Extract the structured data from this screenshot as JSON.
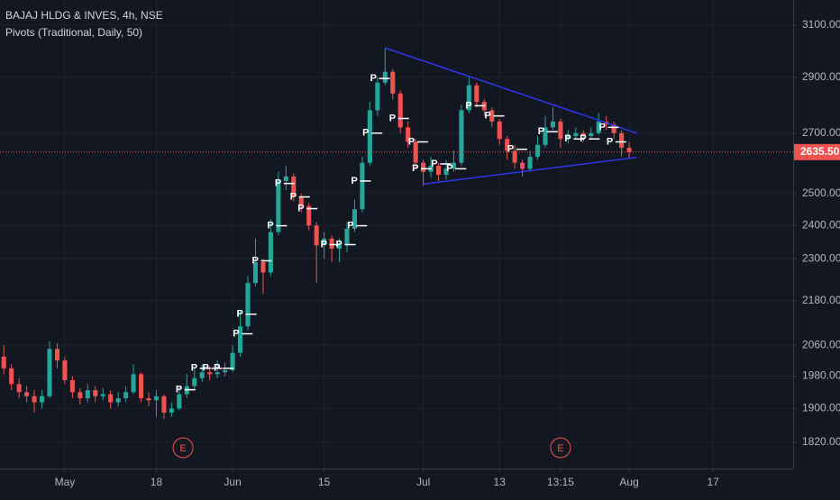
{
  "chart_data": {
    "type": "candlestick",
    "title": "BAJAJ HLDG & INVES, 4h, NSE",
    "subtitle": "Pivots (Traditional, Daily, 50)",
    "log_scale": true,
    "grid": true,
    "up_color": "#26a69a",
    "down_color": "#ef5350",
    "open": [
      2030,
      2000,
      1960,
      1940,
      1930,
      1915,
      1930,
      2050,
      2020,
      1970,
      1940,
      1925,
      1945,
      1930,
      1935,
      1915,
      1925,
      1940,
      1985,
      1925,
      1920,
      1930,
      1890,
      1900,
      1935,
      1955,
      1975,
      1990,
      1985,
      1990,
      1995,
      2040,
      2110,
      2230,
      2290,
      2260,
      2380,
      2540,
      2555,
      2490,
      2460,
      2400,
      2340,
      2360,
      2330,
      2340,
      2390,
      2450,
      2600,
      2780,
      2880,
      2920,
      2840,
      2720,
      2670,
      2600,
      2570,
      2590,
      2560,
      2580,
      2600,
      2780,
      2870,
      2810,
      2780,
      2740,
      2680,
      2640,
      2600,
      2580,
      2620,
      2660,
      2720,
      2740,
      2680,
      2690,
      2700,
      2690,
      2700,
      2740,
      2730,
      2700,
      2650
    ],
    "high": [
      2060,
      2010,
      1975,
      1955,
      1945,
      1945,
      2070,
      2065,
      2030,
      1980,
      1950,
      1960,
      1955,
      1950,
      1945,
      1940,
      1955,
      2010,
      1990,
      1940,
      1945,
      1935,
      1915,
      1955,
      1985,
      2000,
      2010,
      2005,
      2020,
      2015,
      2060,
      2150,
      2250,
      2360,
      2300,
      2420,
      2570,
      2590,
      2565,
      2500,
      2470,
      2410,
      2380,
      2370,
      2360,
      2410,
      2480,
      2620,
      2810,
      2900,
      3010,
      2930,
      2850,
      2740,
      2680,
      2610,
      2620,
      2600,
      2610,
      2640,
      2800,
      2900,
      2880,
      2820,
      2790,
      2750,
      2690,
      2660,
      2610,
      2640,
      2690,
      2760,
      2790,
      2750,
      2710,
      2720,
      2710,
      2720,
      2770,
      2760,
      2740,
      2710,
      2670
    ],
    "low": [
      1985,
      1945,
      1925,
      1915,
      1890,
      1900,
      1925,
      2000,
      1960,
      1925,
      1910,
      1915,
      1915,
      1920,
      1900,
      1905,
      1915,
      1935,
      1915,
      1905,
      1880,
      1875,
      1880,
      1895,
      1925,
      1945,
      1965,
      1970,
      1975,
      1980,
      1990,
      2030,
      2100,
      2220,
      2200,
      2250,
      2370,
      2510,
      2475,
      2440,
      2385,
      2230,
      2300,
      2290,
      2290,
      2320,
      2380,
      2440,
      2590,
      2760,
      2870,
      2820,
      2700,
      2650,
      2580,
      2525,
      2550,
      2540,
      2545,
      2570,
      2590,
      2770,
      2790,
      2760,
      2720,
      2660,
      2610,
      2580,
      2555,
      2570,
      2610,
      2650,
      2710,
      2650,
      2665,
      2680,
      2670,
      2680,
      2695,
      2710,
      2680,
      2620,
      2615
    ],
    "close": [
      2000,
      1960,
      1940,
      1930,
      1915,
      1930,
      2050,
      2020,
      1970,
      1940,
      1925,
      1945,
      1930,
      1935,
      1915,
      1925,
      1940,
      1985,
      1925,
      1920,
      1930,
      1890,
      1900,
      1935,
      1955,
      1975,
      1990,
      1985,
      1990,
      1995,
      2040,
      2110,
      2230,
      2290,
      2260,
      2380,
      2540,
      2555,
      2490,
      2460,
      2400,
      2340,
      2360,
      2330,
      2340,
      2390,
      2450,
      2600,
      2780,
      2880,
      2920,
      2840,
      2720,
      2670,
      2600,
      2570,
      2590,
      2560,
      2580,
      2600,
      2780,
      2870,
      2810,
      2780,
      2740,
      2680,
      2640,
      2600,
      2580,
      2620,
      2660,
      2720,
      2740,
      2680,
      2690,
      2700,
      2690,
      2700,
      2740,
      2730,
      2700,
      2650,
      2635.5
    ],
    "xlim": [
      -0.5,
      103.5
    ],
    "xticks": [
      {
        "value": 8,
        "label": "May"
      },
      {
        "value": 20,
        "label": "18"
      },
      {
        "value": 30,
        "label": "Jun"
      },
      {
        "value": 42,
        "label": "15"
      },
      {
        "value": 55,
        "label": "Jul"
      },
      {
        "value": 65,
        "label": "13"
      },
      {
        "value": 73,
        "label": "13:15"
      },
      {
        "value": 82,
        "label": "Aug"
      },
      {
        "value": 93,
        "label": "17"
      }
    ],
    "ylim": [
      1760,
      3200
    ],
    "yticks": [
      {
        "value": 3100,
        "label": "3100.00"
      },
      {
        "value": 2900,
        "label": "2900.00"
      },
      {
        "value": 2700,
        "label": "2700.00"
      },
      {
        "value": 2500,
        "label": "2500.00"
      },
      {
        "value": 2400,
        "label": "2400.00"
      },
      {
        "value": 2300,
        "label": "2300.00"
      },
      {
        "value": 2180,
        "label": "2180.00"
      },
      {
        "value": 2060,
        "label": "2060.00"
      },
      {
        "value": 1980,
        "label": "1980.00"
      },
      {
        "value": 1900,
        "label": "1900.00"
      },
      {
        "value": 1820,
        "label": "1820.00"
      }
    ],
    "last_price": {
      "value": 2635.5,
      "label": "2635.50"
    },
    "trendlines": {
      "color": "#2f35e8",
      "lines": [
        {
          "x": [
            50,
            83
          ],
          "y": [
            3010,
            2700
          ]
        },
        {
          "x": [
            55,
            83
          ],
          "y": [
            2530,
            2618
          ]
        }
      ]
    },
    "pivots": {
      "label": "P",
      "x": [
        23,
        25,
        26.5,
        28,
        30.5,
        31,
        33,
        35,
        36,
        38,
        39,
        42,
        44,
        45.5,
        46,
        47.5,
        48.5,
        51,
        53.5,
        54,
        56.5,
        58.5,
        61,
        63.5,
        66.5,
        70.5,
        74,
        76,
        78.5,
        79.5
      ],
      "y": [
        1946,
        2000,
        2000,
        2000,
        2090,
        2143,
        2294,
        2399,
        2532,
        2489,
        2452,
        2342,
        2342,
        2399,
        2540,
        2700,
        2895,
        2751,
        2670,
        2580,
        2596,
        2580,
        2796,
        2760,
        2645,
        2705,
        2680,
        2680,
        2720,
        2670
      ]
    },
    "events": {
      "label": "E",
      "x": [
        23.5,
        73
      ]
    }
  }
}
